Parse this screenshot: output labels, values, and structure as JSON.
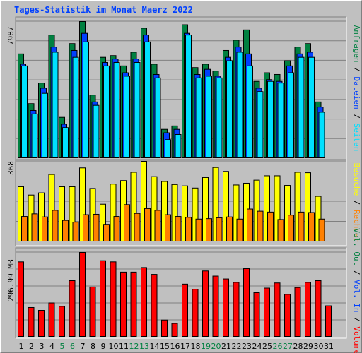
{
  "title": "Tages-Statistik im Monat Maerz 2022",
  "colors": {
    "hits": "#008040",
    "files": "#0040ff",
    "pages": "#00e0ff",
    "visits": "#ffff00",
    "sites": "#ff8000",
    "kbytes": "#ff0000",
    "background": "#c0c0c0",
    "weekend": "#008040",
    "weekday": "#000000",
    "sep": "#404040",
    "text_dark": "#000000"
  },
  "right_labels": {
    "panel1": [
      {
        "text": "Anfragen",
        "color": "#008040"
      },
      {
        "text": " / ",
        "color": "#000000"
      },
      {
        "text": "Dateien",
        "color": "#0040ff"
      },
      {
        "text": " / ",
        "color": "#000000"
      },
      {
        "text": "Seiten",
        "color": "#00e0ff"
      }
    ],
    "panel2": [
      {
        "text": "Besuche",
        "color": "#ffff00"
      },
      {
        "text": " / ",
        "color": "#000000"
      },
      {
        "text": "Rechner",
        "color": "#ff8000"
      }
    ],
    "panel3": [
      {
        "text": "Vol. Out",
        "color": "#008040"
      },
      {
        "text": " / ",
        "color": "#000000"
      },
      {
        "text": "Vol. In",
        "color": "#0040ff"
      },
      {
        "text": " / ",
        "color": "#000000"
      },
      {
        "text": "Volumen",
        "color": "#ff0000"
      }
    ]
  },
  "chart_data": [
    {
      "type": "bar",
      "panel": "hits",
      "max_label": "7987",
      "ylim": [
        0,
        7987
      ],
      "grid": true,
      "categories": [
        "1",
        "2",
        "3",
        "4",
        "5",
        "6",
        "7",
        "8",
        "9",
        "10",
        "11",
        "12",
        "13",
        "14",
        "15",
        "16",
        "17",
        "18",
        "19",
        "20",
        "21",
        "22",
        "23",
        "24",
        "25",
        "26",
        "27",
        "28",
        "29",
        "30",
        "31"
      ],
      "weekend": [
        "5",
        "6",
        "12",
        "13",
        "19",
        "20",
        "26",
        "27"
      ],
      "series": [
        {
          "name": "Anfragen",
          "color": "#008040",
          "values": [
            6100,
            3200,
            4400,
            7200,
            2400,
            6700,
            7987,
            3700,
            5900,
            6000,
            5400,
            6200,
            7600,
            5500,
            1700,
            1900,
            7800,
            5300,
            5500,
            5100,
            6300,
            6900,
            7500,
            4500,
            5000,
            4900,
            5700,
            6500,
            6700,
            3300,
            0
          ]
        },
        {
          "name": "Dateien",
          "color": "#0040ff",
          "values": [
            5500,
            2800,
            4100,
            6500,
            2000,
            6300,
            7300,
            3300,
            5600,
            5800,
            5000,
            5800,
            7200,
            4900,
            1500,
            1700,
            7300,
            4900,
            5200,
            4800,
            5900,
            6500,
            6100,
            4100,
            4600,
            4500,
            5400,
            6100,
            6200,
            3000,
            0
          ]
        },
        {
          "name": "Seiten",
          "color": "#00e0ff",
          "values": [
            5400,
            2600,
            3800,
            6200,
            1800,
            5900,
            6800,
            3100,
            5400,
            5600,
            4800,
            5600,
            6800,
            4700,
            1100,
            1400,
            7200,
            4700,
            4800,
            4700,
            5700,
            6200,
            5400,
            3900,
            4500,
            4400,
            5000,
            5900,
            5900,
            2700,
            0
          ]
        }
      ]
    },
    {
      "type": "bar",
      "panel": "visits",
      "max_label": "368",
      "ylim": [
        0,
        368
      ],
      "grid": true,
      "categories": [
        "1",
        "2",
        "3",
        "4",
        "5",
        "6",
        "7",
        "8",
        "9",
        "10",
        "11",
        "12",
        "13",
        "14",
        "15",
        "16",
        "17",
        "18",
        "19",
        "20",
        "21",
        "22",
        "23",
        "24",
        "25",
        "26",
        "27",
        "28",
        "29",
        "30",
        "31"
      ],
      "series": [
        {
          "name": "Besuche",
          "color": "#ffff00",
          "values": [
            252,
            214,
            224,
            308,
            252,
            252,
            338,
            244,
            172,
            264,
            280,
            318,
            368,
            298,
            276,
            262,
            256,
            246,
            294,
            340,
            322,
            260,
            268,
            282,
            302,
            302,
            258,
            318,
            316,
            208,
            0
          ]
        },
        {
          "name": "Rechner",
          "color": "#ff8000",
          "values": [
            116,
            128,
            114,
            144,
            98,
            90,
            124,
            126,
            80,
            116,
            170,
            130,
            152,
            144,
            124,
            116,
            112,
            104,
            106,
            110,
            114,
            104,
            150,
            140,
            136,
            102,
            122,
            136,
            134,
            104,
            0
          ]
        }
      ]
    },
    {
      "type": "bar",
      "panel": "volume",
      "max_label": "296.99 MB",
      "ylim": [
        0,
        296.99
      ],
      "grid": true,
      "categories": [
        "1",
        "2",
        "3",
        "4",
        "5",
        "6",
        "7",
        "8",
        "9",
        "10",
        "11",
        "12",
        "13",
        "14",
        "15",
        "16",
        "17",
        "18",
        "19",
        "20",
        "21",
        "22",
        "23",
        "24",
        "25",
        "26",
        "27",
        "28",
        "29",
        "30",
        "31"
      ],
      "series": [
        {
          "name": "Volumen",
          "color": "#ff0000",
          "values": [
            264,
            104,
            94,
            120,
            108,
            198,
            296.99,
            176,
            268,
            264,
            228,
            228,
            244,
            220,
            60,
            48,
            186,
            168,
            232,
            214,
            204,
            192,
            240,
            156,
            172,
            190,
            150,
            174,
            192,
            198,
            110
          ]
        }
      ]
    }
  ]
}
